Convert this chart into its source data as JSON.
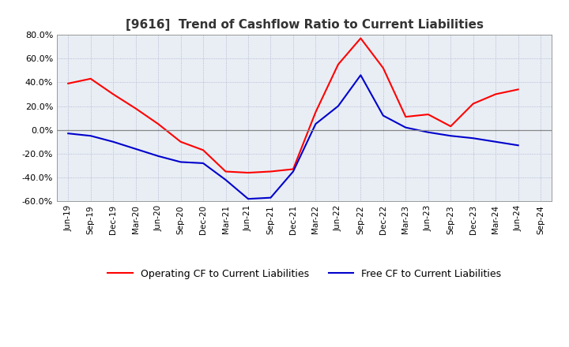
{
  "title": "[9616]  Trend of Cashflow Ratio to Current Liabilities",
  "x_labels": [
    "Jun-19",
    "Sep-19",
    "Dec-19",
    "Mar-20",
    "Jun-20",
    "Sep-20",
    "Dec-20",
    "Mar-21",
    "Jun-21",
    "Sep-21",
    "Dec-21",
    "Mar-22",
    "Jun-22",
    "Sep-22",
    "Dec-22",
    "Mar-23",
    "Jun-23",
    "Sep-23",
    "Dec-23",
    "Mar-24",
    "Jun-24",
    "Sep-24"
  ],
  "operating_cf": [
    39.0,
    43.0,
    30.0,
    18.0,
    5.0,
    -10.0,
    -17.0,
    -35.0,
    -36.0,
    -35.0,
    -33.0,
    15.0,
    55.0,
    77.0,
    52.0,
    11.0,
    13.0,
    3.0,
    22.0,
    30.0,
    34.0,
    null
  ],
  "free_cf": [
    -3.0,
    -5.0,
    -10.0,
    -16.0,
    -22.0,
    -27.0,
    -28.0,
    -42.0,
    -58.0,
    -57.0,
    -35.0,
    5.0,
    20.0,
    46.0,
    12.0,
    2.0,
    -2.0,
    -5.0,
    -7.0,
    -10.0,
    -13.0,
    null
  ],
  "ylim": [
    -60.0,
    80.0
  ],
  "yticks": [
    -60.0,
    -40.0,
    -20.0,
    0.0,
    20.0,
    40.0,
    60.0,
    80.0
  ],
  "operating_color": "#FF0000",
  "free_color": "#0000CC",
  "background_color": "#FFFFFF",
  "plot_bg_color": "#E8EEF4",
  "grid_color": "#AAAACC",
  "zero_line_color": "#888888",
  "legend_operating": "Operating CF to Current Liabilities",
  "legend_free": "Free CF to Current Liabilities",
  "title_fontsize": 11,
  "tick_fontsize": 7.5,
  "ytick_fontsize": 8.0
}
